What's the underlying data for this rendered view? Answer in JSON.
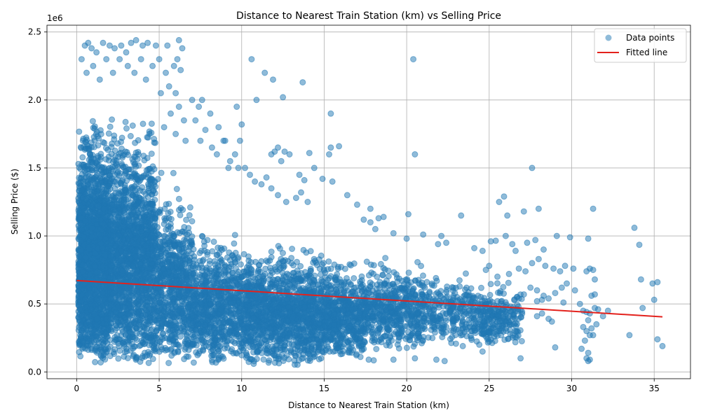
{
  "chart_data": {
    "type": "scatter",
    "title": "Distance to Nearest Train Station (km) vs Selling Price",
    "xlabel": "Distance to Nearest Train Station (km)",
    "ylabel": "Selling Price ($)",
    "y_offset_label": "1e6",
    "xlim": [
      -1.8,
      37.2
    ],
    "ylim": [
      -50000,
      2550000
    ],
    "xticks": [
      0,
      5,
      10,
      15,
      20,
      25,
      30,
      35
    ],
    "xtick_labels": [
      "0",
      "5",
      "10",
      "15",
      "20",
      "25",
      "30",
      "35"
    ],
    "yticks": [
      0,
      500000,
      1000000,
      1500000,
      2000000,
      2500000
    ],
    "ytick_labels": [
      "0.0",
      "0.5",
      "1.0",
      "1.5",
      "2.0",
      "2.5"
    ],
    "grid": true,
    "legend_position": "top-right",
    "series": [
      {
        "name": "Data points",
        "kind": "scatter",
        "color": "#1f77b4",
        "opacity": 0.5,
        "points": [
          [
            0.5,
            2400000
          ],
          [
            0.7,
            2420000
          ],
          [
            0.9,
            2380000
          ],
          [
            1.2,
            2350000
          ],
          [
            1.6,
            2420000
          ],
          [
            2.0,
            2400000
          ],
          [
            2.3,
            2380000
          ],
          [
            2.7,
            2400000
          ],
          [
            3.0,
            2350000
          ],
          [
            3.3,
            2420000
          ],
          [
            3.6,
            2440000
          ],
          [
            4.0,
            2400000
          ],
          [
            4.3,
            2420000
          ],
          [
            4.8,
            2400000
          ],
          [
            5.5,
            2400000
          ],
          [
            6.2,
            2440000
          ],
          [
            6.4,
            2380000
          ],
          [
            0.3,
            2300000
          ],
          [
            0.6,
            2200000
          ],
          [
            1.0,
            2250000
          ],
          [
            1.4,
            2150000
          ],
          [
            1.8,
            2300000
          ],
          [
            2.2,
            2200000
          ],
          [
            2.6,
            2300000
          ],
          [
            3.1,
            2250000
          ],
          [
            3.5,
            2200000
          ],
          [
            3.9,
            2300000
          ],
          [
            4.2,
            2150000
          ],
          [
            4.6,
            2250000
          ],
          [
            5.0,
            2300000
          ],
          [
            5.4,
            2200000
          ],
          [
            5.9,
            2250000
          ],
          [
            6.1,
            2300000
          ],
          [
            6.3,
            2220000
          ],
          [
            5.1,
            2050000
          ],
          [
            5.6,
            2100000
          ],
          [
            6.0,
            2050000
          ],
          [
            5.7,
            1900000
          ],
          [
            6.2,
            1950000
          ],
          [
            6.5,
            1850000
          ],
          [
            5.3,
            1800000
          ],
          [
            6.0,
            1750000
          ],
          [
            6.6,
            1700000
          ],
          [
            7.0,
            2000000
          ],
          [
            7.4,
            1950000
          ],
          [
            7.6,
            2000000
          ],
          [
            7.2,
            1850000
          ],
          [
            7.8,
            1780000
          ],
          [
            8.1,
            1900000
          ],
          [
            8.6,
            1800000
          ],
          [
            7.5,
            1700000
          ],
          [
            8.2,
            1650000
          ],
          [
            8.9,
            1700000
          ],
          [
            8.5,
            1600000
          ],
          [
            9.0,
            1700000
          ],
          [
            9.3,
            1550000
          ],
          [
            9.6,
            1600000
          ],
          [
            9.9,
            1700000
          ],
          [
            10.0,
            1820000
          ],
          [
            9.7,
            1950000
          ],
          [
            9.2,
            1500000
          ],
          [
            9.8,
            1500000
          ],
          [
            10.2,
            1500000
          ],
          [
            10.6,
            2300000
          ],
          [
            10.9,
            2000000
          ],
          [
            11.4,
            2200000
          ],
          [
            11.9,
            2150000
          ],
          [
            12.5,
            2020000
          ],
          [
            13.7,
            2130000
          ],
          [
            11.8,
            1600000
          ],
          [
            12.0,
            1620000
          ],
          [
            12.2,
            1650000
          ],
          [
            12.6,
            1620000
          ],
          [
            12.9,
            1600000
          ],
          [
            12.4,
            1550000
          ],
          [
            13.5,
            1450000
          ],
          [
            13.8,
            1410000
          ],
          [
            14.1,
            1610000
          ],
          [
            14.4,
            1500000
          ],
          [
            14.9,
            1420000
          ],
          [
            15.3,
            1600000
          ],
          [
            15.4,
            1650000
          ],
          [
            15.9,
            1660000
          ],
          [
            15.5,
            1400000
          ],
          [
            15.4,
            1900000
          ],
          [
            20.4,
            2300000
          ],
          [
            20.5,
            1600000
          ],
          [
            27.6,
            1500000
          ],
          [
            10.5,
            1450000
          ],
          [
            10.8,
            1400000
          ],
          [
            11.2,
            1380000
          ],
          [
            11.5,
            1430000
          ],
          [
            11.8,
            1350000
          ],
          [
            12.2,
            1300000
          ],
          [
            12.7,
            1250000
          ],
          [
            13.3,
            1280000
          ],
          [
            13.6,
            1320000
          ],
          [
            14.0,
            1250000
          ],
          [
            16.4,
            1300000
          ],
          [
            17.0,
            1230000
          ],
          [
            17.8,
            1200000
          ],
          [
            18.6,
            1140000
          ],
          [
            18.3,
            1130000
          ],
          [
            20.1,
            1160000
          ],
          [
            21.0,
            1010000
          ],
          [
            22.1,
            1000000
          ],
          [
            23.3,
            1150000
          ],
          [
            25.6,
            1250000
          ],
          [
            25.9,
            1290000
          ],
          [
            26.1,
            1150000
          ],
          [
            27.1,
            1180000
          ],
          [
            28.0,
            1200000
          ],
          [
            31.3,
            1200000
          ],
          [
            33.8,
            1060000
          ],
          [
            34.1,
            935000
          ],
          [
            17.4,
            1120000
          ],
          [
            17.8,
            1100000
          ],
          [
            18.1,
            1050000
          ],
          [
            19.2,
            1020000
          ],
          [
            20.0,
            980000
          ],
          [
            21.9,
            940000
          ],
          [
            22.4,
            950000
          ],
          [
            24.1,
            910000
          ],
          [
            24.6,
            890000
          ],
          [
            25.1,
            960000
          ],
          [
            25.4,
            965000
          ],
          [
            26.0,
            1000000
          ],
          [
            26.4,
            940000
          ],
          [
            26.6,
            890000
          ],
          [
            27.3,
            950000
          ],
          [
            27.8,
            970000
          ],
          [
            28.3,
            900000
          ],
          [
            29.1,
            1000000
          ],
          [
            29.9,
            990000
          ],
          [
            31.0,
            980000
          ],
          [
            24.8,
            750000
          ],
          [
            25.0,
            780000
          ],
          [
            25.5,
            700000
          ],
          [
            26.2,
            720000
          ],
          [
            26.8,
            760000
          ],
          [
            27.2,
            740000
          ],
          [
            27.6,
            800000
          ],
          [
            28.0,
            830000
          ],
          [
            28.4,
            780000
          ],
          [
            28.9,
            760000
          ],
          [
            29.3,
            740000
          ],
          [
            29.6,
            780000
          ],
          [
            30.1,
            760000
          ],
          [
            30.9,
            740000
          ],
          [
            31.1,
            760000
          ],
          [
            31.3,
            750000
          ],
          [
            31.4,
            680000
          ],
          [
            34.2,
            680000
          ],
          [
            35.2,
            660000
          ],
          [
            34.9,
            650000
          ],
          [
            27.5,
            620000
          ],
          [
            27.9,
            600000
          ],
          [
            28.3,
            560000
          ],
          [
            28.6,
            540000
          ],
          [
            29.0,
            580000
          ],
          [
            29.4,
            620000
          ],
          [
            29.7,
            650000
          ],
          [
            30.2,
            600000
          ],
          [
            31.2,
            560000
          ],
          [
            31.4,
            570000
          ],
          [
            30.5,
            500000
          ],
          [
            29.5,
            510000
          ],
          [
            28.2,
            530000
          ],
          [
            27.9,
            520000
          ],
          [
            27.1,
            570000
          ],
          [
            26.8,
            540000
          ],
          [
            30.7,
            450000
          ],
          [
            30.9,
            440000
          ],
          [
            31.1,
            430000
          ],
          [
            31.4,
            470000
          ],
          [
            31.6,
            460000
          ],
          [
            31.9,
            410000
          ],
          [
            32.2,
            450000
          ],
          [
            31.5,
            350000
          ],
          [
            31.2,
            320000
          ],
          [
            30.9,
            300000
          ],
          [
            30.7,
            330000
          ],
          [
            31.0,
            380000
          ],
          [
            31.1,
            270000
          ],
          [
            30.8,
            230000
          ],
          [
            30.6,
            170000
          ],
          [
            31.0,
            140000
          ],
          [
            31.1,
            90000
          ],
          [
            31.0,
            80000
          ],
          [
            30.9,
            100000
          ],
          [
            31.3,
            270000
          ],
          [
            33.5,
            270000
          ],
          [
            34.3,
            470000
          ],
          [
            35.0,
            530000
          ],
          [
            35.2,
            240000
          ],
          [
            35.5,
            190000
          ],
          [
            29.0,
            180000
          ],
          [
            28.8,
            370000
          ],
          [
            28.6,
            390000
          ],
          [
            28.2,
            430000
          ],
          [
            27.9,
            410000
          ],
          [
            26.9,
            100000
          ],
          [
            26.5,
            350000
          ],
          [
            26.2,
            470000
          ],
          [
            25.9,
            390000
          ],
          [
            25.6,
            300000
          ],
          [
            25.3,
            260000
          ],
          [
            25.1,
            240000
          ],
          [
            24.8,
            260000
          ],
          [
            24.6,
            150000
          ],
          [
            24.4,
            200000
          ],
          [
            23.4,
            190000
          ],
          [
            22.3,
            80000
          ],
          [
            21.8,
            90000
          ],
          [
            20.5,
            100000
          ],
          [
            19.2,
            90000
          ],
          [
            18.0,
            85000
          ],
          [
            17.7,
            90000
          ],
          [
            17.2,
            110000
          ],
          [
            16.0,
            130000
          ]
        ]
      },
      {
        "name": "Fitted line",
        "kind": "line",
        "color": "#e3211c",
        "x": [
          0.0,
          35.5
        ],
        "y": [
          672000,
          405000
        ]
      }
    ],
    "density_clusters": [
      {
        "x": [
          0.1,
          2.0
        ],
        "y": [
          50000,
          2000000
        ],
        "n": 1900
      },
      {
        "x": [
          2.0,
          4.8
        ],
        "y": [
          50000,
          2000000
        ],
        "n": 1700
      },
      {
        "x": [
          4.8,
          7.0
        ],
        "y": [
          50000,
          1500000
        ],
        "n": 700
      },
      {
        "x": [
          7.0,
          10.5
        ],
        "y": [
          50000,
          1100000
        ],
        "n": 900
      },
      {
        "x": [
          10.5,
          15.0
        ],
        "y": [
          50000,
          1000000
        ],
        "n": 1200
      },
      {
        "x": [
          15.0,
          17.5
        ],
        "y": [
          100000,
          900000
        ],
        "n": 550
      },
      {
        "x": [
          17.5,
          21.0
        ],
        "y": [
          150000,
          900000
        ],
        "n": 500
      },
      {
        "x": [
          21.0,
          24.0
        ],
        "y": [
          200000,
          800000
        ],
        "n": 250
      },
      {
        "x": [
          24.0,
          27.0
        ],
        "y": [
          200000,
          700000
        ],
        "n": 260
      }
    ]
  }
}
